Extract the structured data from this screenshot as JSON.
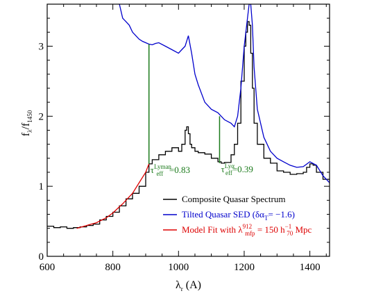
{
  "chart_data": {
    "type": "line",
    "xlabel": {
      "main": "λ",
      "sub": "r",
      "unit": "(A)"
    },
    "ylabel": {
      "main": "f",
      "sub1": "λ",
      "sep": "/f",
      "sub2": "1450"
    },
    "xlim": [
      600,
      1460
    ],
    "ylim": [
      0,
      3.6
    ],
    "xticks": [
      600,
      800,
      1000,
      1200,
      1400
    ],
    "yticks": [
      0,
      1,
      2,
      3
    ],
    "grid": false,
    "legend_position": "bottom-right",
    "series": [
      {
        "name": "Composite Quasar Spectrum",
        "color": "#000000",
        "style": "step",
        "x": [
          600,
          620,
          640,
          660,
          680,
          700,
          720,
          740,
          760,
          780,
          800,
          820,
          840,
          860,
          880,
          900,
          910,
          920,
          940,
          960,
          980,
          1000,
          1010,
          1020,
          1025,
          1030,
          1035,
          1040,
          1050,
          1060,
          1080,
          1100,
          1120,
          1130,
          1140,
          1160,
          1170,
          1180,
          1190,
          1200,
          1205,
          1210,
          1215,
          1220,
          1225,
          1230,
          1240,
          1260,
          1280,
          1300,
          1320,
          1340,
          1360,
          1380,
          1390,
          1400,
          1410,
          1420,
          1440,
          1460
        ],
        "y": [
          0.43,
          0.41,
          0.42,
          0.4,
          0.41,
          0.42,
          0.44,
          0.46,
          0.52,
          0.57,
          0.63,
          0.72,
          0.82,
          0.9,
          1.0,
          1.2,
          1.32,
          1.38,
          1.45,
          1.5,
          1.55,
          1.5,
          1.6,
          1.8,
          1.85,
          1.75,
          1.6,
          1.55,
          1.5,
          1.48,
          1.46,
          1.4,
          1.35,
          1.33,
          1.34,
          1.45,
          1.6,
          1.9,
          2.5,
          3.0,
          3.2,
          3.35,
          3.3,
          2.9,
          2.4,
          1.9,
          1.6,
          1.4,
          1.33,
          1.22,
          1.2,
          1.17,
          1.18,
          1.2,
          1.27,
          1.32,
          1.3,
          1.2,
          1.1,
          1.04
        ]
      },
      {
        "name": "Tilted Quasar SED (δα",
        "color": "#0000cc",
        "style": "line",
        "x": [
          820,
          830,
          840,
          850,
          860,
          870,
          880,
          890,
          900,
          910,
          920,
          930,
          940,
          960,
          980,
          1000,
          1010,
          1020,
          1030,
          1040,
          1050,
          1060,
          1080,
          1100,
          1120,
          1130,
          1140,
          1160,
          1170,
          1180,
          1190,
          1200,
          1210,
          1215,
          1220,
          1225,
          1230,
          1240,
          1260,
          1280,
          1300,
          1320,
          1340,
          1360,
          1380,
          1400,
          1420,
          1440,
          1460
        ],
        "y": [
          3.6,
          3.4,
          3.35,
          3.3,
          3.2,
          3.15,
          3.1,
          3.07,
          3.05,
          3.03,
          3.02,
          3.04,
          3.05,
          3.0,
          2.95,
          2.9,
          2.95,
          3.0,
          3.15,
          2.9,
          2.6,
          2.45,
          2.2,
          2.1,
          2.05,
          2.0,
          1.95,
          1.9,
          1.85,
          2.0,
          2.4,
          3.0,
          3.4,
          3.6,
          3.6,
          3.3,
          2.7,
          2.1,
          1.7,
          1.5,
          1.4,
          1.35,
          1.3,
          1.27,
          1.28,
          1.35,
          1.3,
          1.15,
          1.05
        ]
      },
      {
        "name": "Model Fit with λ",
        "color": "#dd0000",
        "style": "line",
        "x": [
          690,
          720,
          750,
          780,
          800,
          830,
          860,
          880,
          900,
          910
        ],
        "y": [
          0.4,
          0.44,
          0.48,
          0.55,
          0.62,
          0.75,
          0.9,
          1.05,
          1.2,
          1.32
        ]
      }
    ],
    "annotations": [
      {
        "x": 910,
        "y_low": 1.32,
        "y_high": 3.03,
        "label_main": "τ",
        "label_sup": "Lyman",
        "label_sub": "eff",
        "label_rest": "=0.83",
        "color": "#1a7a1a"
      },
      {
        "x": 1125,
        "y_low": 1.33,
        "y_high": 2.0,
        "label_main": "τ",
        "label_sup": "Lyα",
        "label_sub": "eff",
        "label_rest": "=0.39",
        "color": "#1a7a1a"
      }
    ],
    "legend": [
      {
        "color": "#000000",
        "text": "Composite Quasar Spectrum"
      },
      {
        "color": "#0000cc",
        "text": "Tilted Quasar SED (δα",
        "sub": "T",
        "tail": "= −1.6)"
      },
      {
        "color": "#dd0000",
        "text": "Model Fit with λ",
        "sup": "912",
        "sub": "mfp",
        "mid": " = 150 h",
        "sup2": "−1",
        "sub2": "70",
        "tail": " Mpc"
      }
    ]
  }
}
